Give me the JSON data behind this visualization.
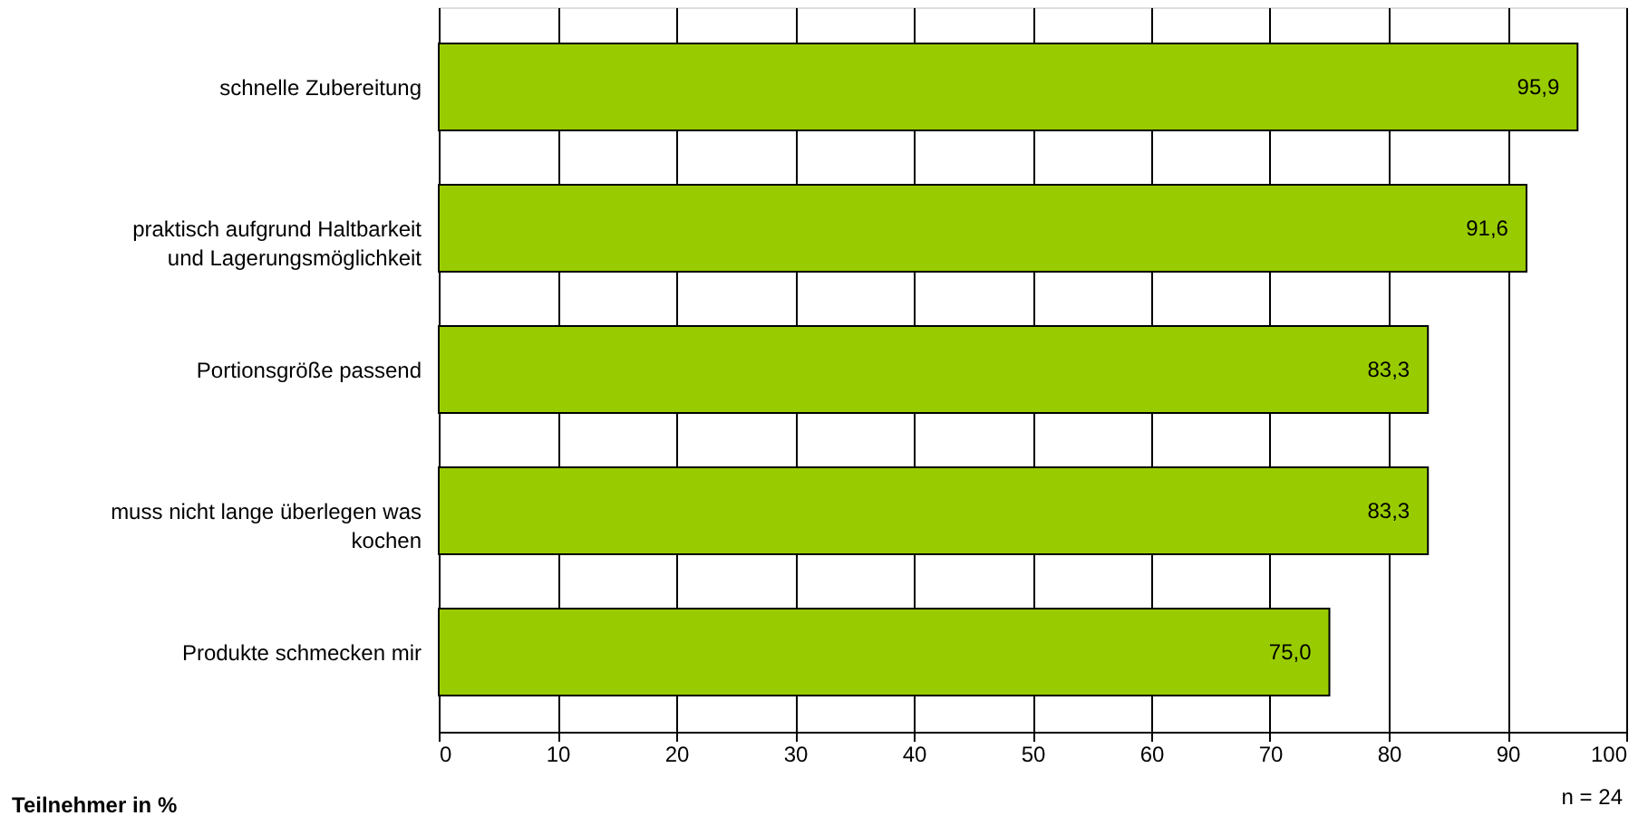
{
  "chart_data": {
    "type": "bar",
    "orientation": "horizontal",
    "categories": [
      "schnelle Zubereitung",
      "praktisch aufgrund Haltbarkeit\nund Lagerungsmöglichkeit",
      "Portionsgröße passend",
      "muss nicht lange überlegen was\nkochen",
      "Produkte schmecken mir"
    ],
    "values": [
      95.9,
      91.6,
      83.3,
      83.3,
      75.0
    ],
    "value_labels": [
      "95,9",
      "91,6",
      "83,3",
      "83,3",
      "75,0"
    ],
    "color": "#99cc00",
    "xlim": [
      0,
      100
    ],
    "xticks": [
      0,
      10,
      20,
      30,
      40,
      50,
      60,
      70,
      80,
      90,
      100
    ],
    "xlabel": "Teilnehmer in %",
    "annotations": [
      "n = 24"
    ],
    "grid": "x"
  }
}
